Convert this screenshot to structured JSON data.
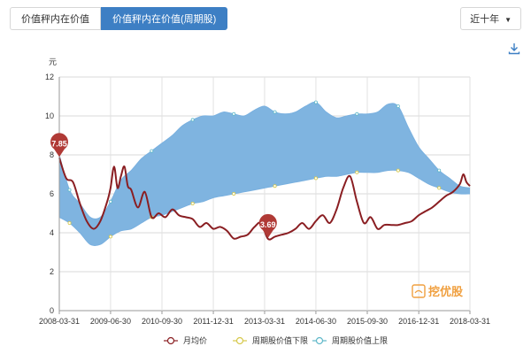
{
  "tabs": [
    {
      "label": "价值秤内在价值",
      "active": false
    },
    {
      "label": "价值秤内在价值(周期股)",
      "active": true
    }
  ],
  "range_selector": {
    "label": "近十年"
  },
  "download_icon": "download-icon",
  "watermark": "挖优股",
  "colors": {
    "price_line": "#8a1e22",
    "band_fill": "#7fb4e0",
    "band_edge": "#79b0df",
    "lower_marker": "#d6c84a",
    "upper_marker": "#5fb8c9",
    "pin": "#b03a36",
    "tab_active": "#3d7fc4"
  },
  "chart_data": {
    "type": "area",
    "title": "",
    "xlabel": "",
    "ylabel": "元",
    "ylim": [
      0,
      12
    ],
    "yticks": [
      0,
      2,
      4,
      6,
      8,
      10,
      12
    ],
    "xlim": [
      "2008-03-31",
      "2018-03-31"
    ],
    "xticks": [
      "2008-03-31",
      "2009-06-30",
      "2010-09-30",
      "2011-12-31",
      "2013-03-31",
      "2014-06-30",
      "2015-09-30",
      "2016-12-31",
      "2018-03-31"
    ],
    "grid": true,
    "legend": {
      "placement": "bottom",
      "entries": [
        "月均价",
        "周期股价值下限",
        "周期股价值上限"
      ]
    },
    "series": [
      {
        "name": "月均价",
        "x": [
          "2008-03-31",
          "2008-05-31",
          "2008-07-31",
          "2008-09-30",
          "2008-11-30",
          "2009-01-31",
          "2009-03-31",
          "2009-05-31",
          "2009-06-30",
          "2009-07-31",
          "2009-08-31",
          "2009-09-30",
          "2009-10-31",
          "2009-11-30",
          "2009-12-31",
          "2010-02-28",
          "2010-04-30",
          "2010-06-30",
          "2010-08-31",
          "2010-10-31",
          "2010-12-31",
          "2011-02-28",
          "2011-04-30",
          "2011-06-30",
          "2011-08-31",
          "2011-10-31",
          "2011-12-31",
          "2012-02-29",
          "2012-04-30",
          "2012-06-30",
          "2012-08-31",
          "2012-10-31",
          "2012-12-31",
          "2013-02-28",
          "2013-04-30",
          "2013-06-30",
          "2013-08-31",
          "2013-10-31",
          "2013-12-31",
          "2014-02-28",
          "2014-04-30",
          "2014-06-30",
          "2014-08-31",
          "2014-10-31",
          "2014-12-31",
          "2015-02-28",
          "2015-04-30",
          "2015-06-30",
          "2015-08-31",
          "2015-10-31",
          "2015-12-31",
          "2016-02-29",
          "2016-04-30",
          "2016-06-30",
          "2016-08-31",
          "2016-10-31",
          "2016-12-31",
          "2017-02-28",
          "2017-04-30",
          "2017-06-30",
          "2017-08-31",
          "2017-10-31",
          "2017-12-31",
          "2018-01-31",
          "2018-02-28",
          "2018-03-31"
        ],
        "values": [
          7.85,
          6.8,
          6.6,
          5.5,
          4.6,
          4.2,
          4.6,
          5.6,
          6.3,
          7.4,
          6.3,
          6.9,
          7.4,
          6.4,
          6.2,
          5.3,
          6.1,
          4.8,
          5.0,
          4.8,
          5.2,
          4.9,
          4.8,
          4.7,
          4.3,
          4.5,
          4.2,
          4.3,
          4.1,
          3.7,
          3.8,
          3.9,
          4.3,
          4.5,
          3.69,
          3.8,
          3.9,
          4.0,
          4.2,
          4.5,
          4.2,
          4.6,
          4.9,
          4.5,
          5.2,
          6.3,
          6.9,
          5.6,
          4.5,
          4.8,
          4.2,
          4.4,
          4.4,
          4.4,
          4.5,
          4.6,
          4.9,
          5.1,
          5.3,
          5.6,
          5.9,
          6.1,
          6.5,
          7.0,
          6.6,
          6.4
        ]
      },
      {
        "name": "周期股价值下限",
        "x": [
          "2008-03-31",
          "2008-06-30",
          "2008-09-30",
          "2008-12-31",
          "2009-03-31",
          "2009-06-30",
          "2009-09-30",
          "2009-12-31",
          "2010-03-31",
          "2010-06-30",
          "2010-09-30",
          "2010-12-31",
          "2011-03-31",
          "2011-06-30",
          "2011-09-30",
          "2011-12-31",
          "2012-03-31",
          "2012-06-30",
          "2012-09-30",
          "2012-12-31",
          "2013-03-31",
          "2013-06-30",
          "2013-09-30",
          "2013-12-31",
          "2014-03-31",
          "2014-06-30",
          "2014-09-30",
          "2014-12-31",
          "2015-03-31",
          "2015-06-30",
          "2015-09-30",
          "2015-12-31",
          "2016-03-31",
          "2016-06-30",
          "2016-09-30",
          "2016-12-31",
          "2017-03-31",
          "2017-06-30",
          "2017-09-30",
          "2017-12-31",
          "2018-03-31"
        ],
        "values": [
          4.8,
          4.5,
          4.0,
          3.4,
          3.4,
          3.8,
          4.1,
          4.2,
          4.5,
          4.8,
          4.9,
          5.1,
          5.3,
          5.5,
          5.6,
          5.8,
          5.9,
          6.0,
          6.1,
          6.2,
          6.3,
          6.4,
          6.5,
          6.6,
          6.7,
          6.8,
          6.9,
          6.9,
          7.0,
          7.1,
          7.1,
          7.1,
          7.2,
          7.2,
          7.1,
          6.8,
          6.5,
          6.3,
          6.1,
          6.0,
          6.0
        ]
      },
      {
        "name": "周期股价值上限",
        "x": [
          "2008-03-31",
          "2008-06-30",
          "2008-09-30",
          "2008-12-31",
          "2009-03-31",
          "2009-06-30",
          "2009-09-30",
          "2009-12-31",
          "2010-03-31",
          "2010-06-30",
          "2010-09-30",
          "2010-12-31",
          "2011-03-31",
          "2011-06-30",
          "2011-09-30",
          "2011-12-31",
          "2012-03-31",
          "2012-06-30",
          "2012-09-30",
          "2012-12-31",
          "2013-03-31",
          "2013-06-30",
          "2013-09-30",
          "2013-12-31",
          "2014-03-31",
          "2014-06-30",
          "2014-09-30",
          "2014-12-31",
          "2015-03-31",
          "2015-06-30",
          "2015-09-30",
          "2015-12-31",
          "2016-03-31",
          "2016-06-30",
          "2016-09-30",
          "2016-12-31",
          "2017-03-31",
          "2017-06-30",
          "2017-09-30",
          "2017-12-31",
          "2018-03-31"
        ],
        "values": [
          8.0,
          6.2,
          5.5,
          4.8,
          4.8,
          5.6,
          6.7,
          7.2,
          7.8,
          8.2,
          8.6,
          9.0,
          9.5,
          9.8,
          10.0,
          10.0,
          10.2,
          10.1,
          10.0,
          10.3,
          10.5,
          10.2,
          10.1,
          10.2,
          10.5,
          10.7,
          10.2,
          9.9,
          10.0,
          10.1,
          10.1,
          10.2,
          10.6,
          10.5,
          9.4,
          8.4,
          7.8,
          7.2,
          6.8,
          6.4,
          6.3
        ]
      }
    ],
    "annotations": [
      {
        "label": "7.85",
        "x": "2008-03-31",
        "y": 7.85
      },
      {
        "label": "3.69",
        "x": "2013-04-30",
        "y": 3.69
      }
    ]
  }
}
